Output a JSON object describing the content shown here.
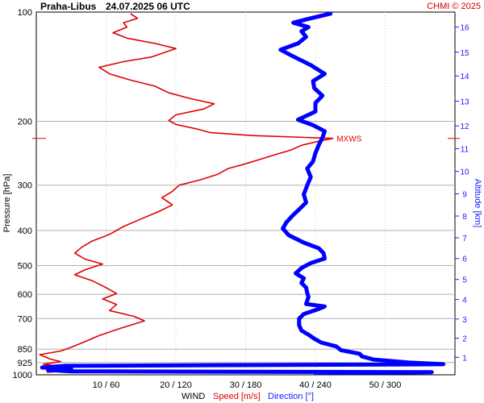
{
  "header": {
    "station": "Praha-Libus",
    "datetime": "24.07.2025 06 UTC",
    "credit": "CHMI © 2025"
  },
  "labels": {
    "pressure_axis": "Pressure [hPa]",
    "altitude_axis": "Altitude [km]",
    "wind": "WIND",
    "speed": "Speed [m/s]",
    "direction": "Direction [°]",
    "max_wind": "MXWS"
  },
  "colors": {
    "speed": "#e00000",
    "direction": "#0000ff",
    "axis_text_alt": "#1a1aff",
    "grid": "#b0b0b0"
  },
  "chart_data": {
    "type": "line",
    "x_scale": {
      "speed_range_ms": [
        0,
        60
      ],
      "direction_range_deg": [
        0,
        360
      ]
    },
    "x_ticks": [
      {
        "label": "10 / 60",
        "speed": 10
      },
      {
        "label": "20 / 120",
        "speed": 20
      },
      {
        "label": "30 / 180",
        "speed": 30
      },
      {
        "label": "40 / 240",
        "speed": 40
      },
      {
        "label": "50 / 300",
        "speed": 50
      }
    ],
    "y_scale": "log",
    "y_range_hpa": [
      1000,
      100
    ],
    "y_ticks": [
      {
        "label": "100",
        "p": 100
      },
      {
        "label": "200",
        "p": 200
      },
      {
        "label": "300",
        "p": 300
      },
      {
        "label": "400",
        "p": 400
      },
      {
        "label": "500",
        "p": 500
      },
      {
        "label": "600",
        "p": 600
      },
      {
        "label": "700",
        "p": 700
      },
      {
        "label": "850",
        "p": 850
      },
      {
        "label": "925",
        "p": 925
      },
      {
        "label": "1000",
        "p": 1000
      }
    ],
    "altitude_ticks": [
      {
        "km": 1,
        "p": 895
      },
      {
        "km": 2,
        "p": 793
      },
      {
        "km": 3,
        "p": 702
      },
      {
        "km": 4,
        "p": 620
      },
      {
        "km": 5,
        "p": 546
      },
      {
        "km": 6,
        "p": 478
      },
      {
        "km": 7,
        "p": 419
      },
      {
        "km": 8,
        "p": 365
      },
      {
        "km": 9,
        "p": 317
      },
      {
        "km": 10,
        "p": 275
      },
      {
        "km": 11,
        "p": 238
      },
      {
        "km": 12,
        "p": 206
      },
      {
        "km": 13,
        "p": 176
      },
      {
        "km": 14,
        "p": 150
      },
      {
        "km": 15,
        "p": 129
      },
      {
        "km": 16,
        "p": 110
      }
    ],
    "max_wind_pressure_hpa": 223,
    "series": [
      {
        "name": "Speed [m/s]",
        "unit": "m/s",
        "points": [
          {
            "p": 985,
            "v": 1.5
          },
          {
            "p": 975,
            "v": 4.5
          },
          {
            "p": 965,
            "v": 1.5
          },
          {
            "p": 950,
            "v": 4.0
          },
          {
            "p": 935,
            "v": 1.0
          },
          {
            "p": 920,
            "v": 3.5
          },
          {
            "p": 905,
            "v": 2.0
          },
          {
            "p": 880,
            "v": 0.5
          },
          {
            "p": 860,
            "v": 3.5
          },
          {
            "p": 840,
            "v": 5.0
          },
          {
            "p": 810,
            "v": 7.0
          },
          {
            "p": 780,
            "v": 9.0
          },
          {
            "p": 745,
            "v": 12.0
          },
          {
            "p": 710,
            "v": 15.5
          },
          {
            "p": 690,
            "v": 14.0
          },
          {
            "p": 665,
            "v": 10.5
          },
          {
            "p": 640,
            "v": 11.5
          },
          {
            "p": 618,
            "v": 9.5
          },
          {
            "p": 597,
            "v": 11.5
          },
          {
            "p": 575,
            "v": 10.0
          },
          {
            "p": 550,
            "v": 8.0
          },
          {
            "p": 530,
            "v": 5.5
          },
          {
            "p": 513,
            "v": 7.0
          },
          {
            "p": 495,
            "v": 9.5
          },
          {
            "p": 480,
            "v": 7.0
          },
          {
            "p": 462,
            "v": 5.5
          },
          {
            "p": 445,
            "v": 6.5
          },
          {
            "p": 428,
            "v": 8.0
          },
          {
            "p": 410,
            "v": 10.5
          },
          {
            "p": 390,
            "v": 12.5
          },
          {
            "p": 372,
            "v": 15.0
          },
          {
            "p": 355,
            "v": 17.5
          },
          {
            "p": 340,
            "v": 19.5
          },
          {
            "p": 325,
            "v": 18.0
          },
          {
            "p": 312,
            "v": 19.5
          },
          {
            "p": 300,
            "v": 20.5
          },
          {
            "p": 290,
            "v": 23.5
          },
          {
            "p": 280,
            "v": 26.0
          },
          {
            "p": 270,
            "v": 27.5
          },
          {
            "p": 262,
            "v": 30.0
          },
          {
            "p": 255,
            "v": 32.0
          },
          {
            "p": 248,
            "v": 34.0
          },
          {
            "p": 240,
            "v": 36.5
          },
          {
            "p": 233,
            "v": 38.0
          },
          {
            "p": 227,
            "v": 40.5
          },
          {
            "p": 223,
            "v": 42.5
          },
          {
            "p": 219,
            "v": 31.0
          },
          {
            "p": 215,
            "v": 25.0
          },
          {
            "p": 210,
            "v": 23.0
          },
          {
            "p": 204,
            "v": 20.0
          },
          {
            "p": 199,
            "v": 19.0
          },
          {
            "p": 192,
            "v": 20.0
          },
          {
            "p": 185,
            "v": 24.0
          },
          {
            "p": 179,
            "v": 25.5
          },
          {
            "p": 173,
            "v": 22.0
          },
          {
            "p": 167,
            "v": 19.0
          },
          {
            "p": 160,
            "v": 17.0
          },
          {
            "p": 154,
            "v": 13.5
          },
          {
            "p": 148,
            "v": 10.5
          },
          {
            "p": 142,
            "v": 9.0
          },
          {
            "p": 137,
            "v": 12.5
          },
          {
            "p": 133,
            "v": 16.5
          },
          {
            "p": 130,
            "v": 18.0
          },
          {
            "p": 126,
            "v": 20.0
          },
          {
            "p": 122,
            "v": 17.0
          },
          {
            "p": 118,
            "v": 13.0
          },
          {
            "p": 114,
            "v": 11.0
          },
          {
            "p": 110,
            "v": 13.0
          },
          {
            "p": 107,
            "v": 12.5
          },
          {
            "p": 104,
            "v": 14.5
          },
          {
            "p": 101,
            "v": 13.5
          }
        ]
      },
      {
        "name": "Direction [°]",
        "unit": "deg",
        "points": [
          {
            "p": 988,
            "v": 240
          },
          {
            "p": 984,
            "v": 340
          },
          {
            "p": 978,
            "v": 30
          },
          {
            "p": 970,
            "v": 10
          },
          {
            "p": 962,
            "v": 30
          },
          {
            "p": 955,
            "v": 5
          },
          {
            "p": 945,
            "v": 25
          },
          {
            "p": 935,
            "v": 350
          },
          {
            "p": 925,
            "v": 320
          },
          {
            "p": 908,
            "v": 290
          },
          {
            "p": 890,
            "v": 280
          },
          {
            "p": 875,
            "v": 278
          },
          {
            "p": 855,
            "v": 262
          },
          {
            "p": 835,
            "v": 258
          },
          {
            "p": 815,
            "v": 245
          },
          {
            "p": 795,
            "v": 239
          },
          {
            "p": 775,
            "v": 234
          },
          {
            "p": 755,
            "v": 228
          },
          {
            "p": 730,
            "v": 226
          },
          {
            "p": 700,
            "v": 226
          },
          {
            "p": 680,
            "v": 230
          },
          {
            "p": 660,
            "v": 242
          },
          {
            "p": 648,
            "v": 248
          },
          {
            "p": 638,
            "v": 232
          },
          {
            "p": 625,
            "v": 233
          },
          {
            "p": 610,
            "v": 234
          },
          {
            "p": 595,
            "v": 233
          },
          {
            "p": 575,
            "v": 232
          },
          {
            "p": 558,
            "v": 228
          },
          {
            "p": 542,
            "v": 230
          },
          {
            "p": 525,
            "v": 223
          },
          {
            "p": 508,
            "v": 228
          },
          {
            "p": 492,
            "v": 236
          },
          {
            "p": 478,
            "v": 248
          },
          {
            "p": 462,
            "v": 247
          },
          {
            "p": 448,
            "v": 243
          },
          {
            "p": 432,
            "v": 230
          },
          {
            "p": 412,
            "v": 217
          },
          {
            "p": 395,
            "v": 212
          },
          {
            "p": 380,
            "v": 215
          },
          {
            "p": 365,
            "v": 220
          },
          {
            "p": 350,
            "v": 226
          },
          {
            "p": 335,
            "v": 232
          },
          {
            "p": 318,
            "v": 230
          },
          {
            "p": 300,
            "v": 233
          },
          {
            "p": 285,
            "v": 236
          },
          {
            "p": 270,
            "v": 233
          },
          {
            "p": 258,
            "v": 238
          },
          {
            "p": 245,
            "v": 240
          },
          {
            "p": 232,
            "v": 243
          },
          {
            "p": 222,
            "v": 246
          },
          {
            "p": 213,
            "v": 248
          },
          {
            "p": 205,
            "v": 238
          },
          {
            "p": 198,
            "v": 225
          },
          {
            "p": 188,
            "v": 240
          },
          {
            "p": 178,
            "v": 240
          },
          {
            "p": 170,
            "v": 246
          },
          {
            "p": 162,
            "v": 239
          },
          {
            "p": 155,
            "v": 238
          },
          {
            "p": 148,
            "v": 248
          },
          {
            "p": 140,
            "v": 236
          },
          {
            "p": 132,
            "v": 220
          },
          {
            "p": 127,
            "v": 210
          },
          {
            "p": 122,
            "v": 225
          },
          {
            "p": 117,
            "v": 232
          },
          {
            "p": 113,
            "v": 228
          },
          {
            "p": 110,
            "v": 234
          },
          {
            "p": 107,
            "v": 221
          },
          {
            "p": 104,
            "v": 236
          },
          {
            "p": 101,
            "v": 253
          }
        ]
      }
    ]
  }
}
